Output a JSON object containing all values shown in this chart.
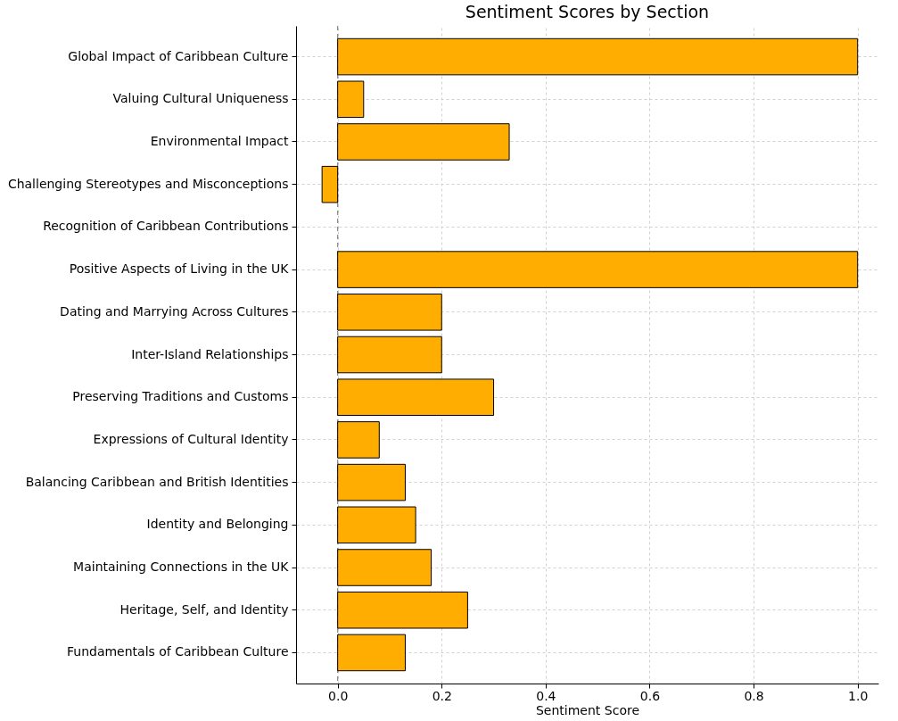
{
  "chart_data": {
    "type": "bar",
    "orientation": "horizontal",
    "title": "Sentiment Scores by Section",
    "xlabel": "Sentiment Score",
    "categories": [
      "Global Impact of Caribbean Culture",
      "Valuing Cultural Uniqueness",
      "Environmental Impact",
      "Challenging Stereotypes and Misconceptions",
      "Recognition of Caribbean Contributions",
      "Positive Aspects of Living in the UK",
      "Dating and Marrying Across Cultures",
      "Inter-Island Relationships",
      "Preserving Traditions and Customs",
      "Expressions of Cultural Identity",
      "Balancing Caribbean and British Identities",
      "Identity and Belonging",
      "Maintaining Connections in the UK",
      "Heritage, Self, and Identity",
      "Fundamentals of Caribbean Culture"
    ],
    "values": [
      1.0,
      0.05,
      0.33,
      -0.03,
      0.0,
      1.0,
      0.2,
      0.2,
      0.3,
      0.08,
      0.13,
      0.15,
      0.18,
      0.25,
      0.13
    ],
    "color": "#ffad00",
    "xlim": [
      -0.08,
      1.04
    ],
    "xticks": [
      {
        "value": 0,
        "label": "0.0"
      },
      {
        "value": 0.2,
        "label": "0.2"
      },
      {
        "value": 0.4,
        "label": "0.4"
      },
      {
        "value": 0.6,
        "label": "0.6"
      },
      {
        "value": 0.8,
        "label": "0.8"
      },
      {
        "value": 1,
        "label": "1.0"
      }
    ],
    "grid": true,
    "ref_lines": [
      {
        "axis": "x",
        "value": 0,
        "color": "#888888",
        "line_style": "dashed"
      }
    ]
  }
}
